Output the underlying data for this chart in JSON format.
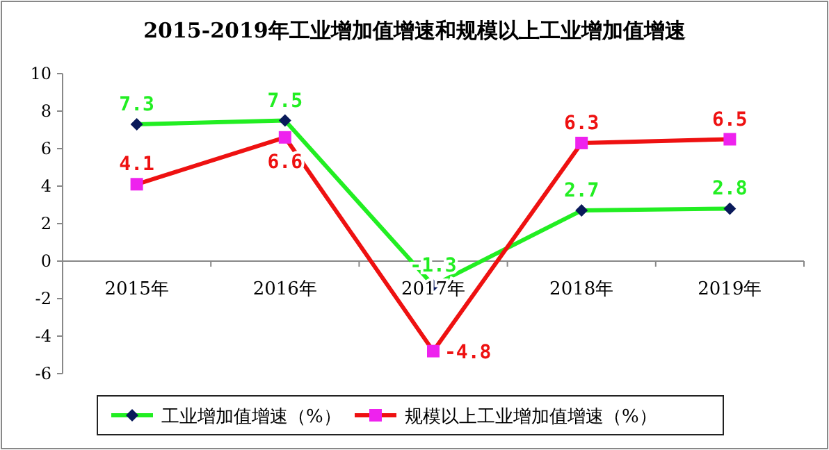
{
  "chart_data": {
    "type": "line",
    "title": "2015-2019年工业增加值增速和规模以上工业增加值增速",
    "categories": [
      "2015年",
      "2016年",
      "2017年",
      "2018年",
      "2019年"
    ],
    "series": [
      {
        "name": "工业增加值增速（%）",
        "color": "#22ee22",
        "marker": "diamond",
        "values": [
          7.3,
          7.5,
          -1.3,
          2.7,
          2.8
        ]
      },
      {
        "name": "规模以上工业增加值增速（%）",
        "color": "#ee1111",
        "marker": "square",
        "values": [
          4.1,
          6.6,
          -4.8,
          6.3,
          6.5
        ]
      }
    ],
    "ylim": [
      -6,
      10
    ],
    "yticks": [
      -6,
      -4,
      -2,
      0,
      2,
      4,
      6,
      8,
      10
    ],
    "data_labels": true,
    "legend": "bottom",
    "grid": false
  }
}
